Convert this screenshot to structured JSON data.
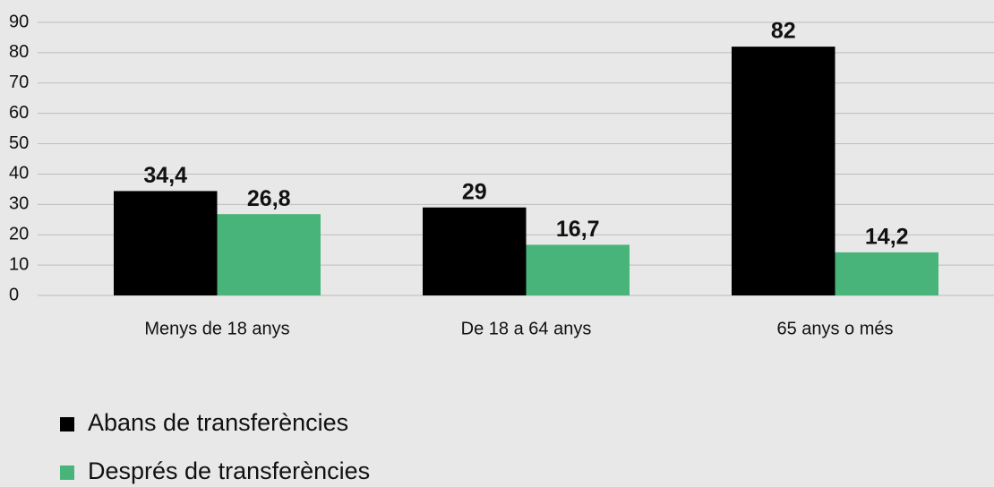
{
  "chart_data": {
    "type": "bar",
    "categories": [
      "Menys de 18 anys",
      "De 18 a 64 anys",
      "65 anys o més"
    ],
    "series": [
      {
        "name": "Abans de transferències",
        "color": "#000000",
        "values": [
          34.4,
          29,
          82
        ],
        "value_labels": [
          "34,4",
          "29",
          "82"
        ]
      },
      {
        "name": "Després de transferències",
        "color": "#48b479",
        "values": [
          26.8,
          16.7,
          14.2
        ],
        "value_labels": [
          "26,8",
          "16,7",
          "14,2"
        ]
      }
    ],
    "ylim": [
      0,
      90
    ],
    "yticks": [
      0,
      10,
      20,
      30,
      40,
      50,
      60,
      70,
      80,
      90
    ],
    "grid": true,
    "legend": "bottom-left"
  }
}
